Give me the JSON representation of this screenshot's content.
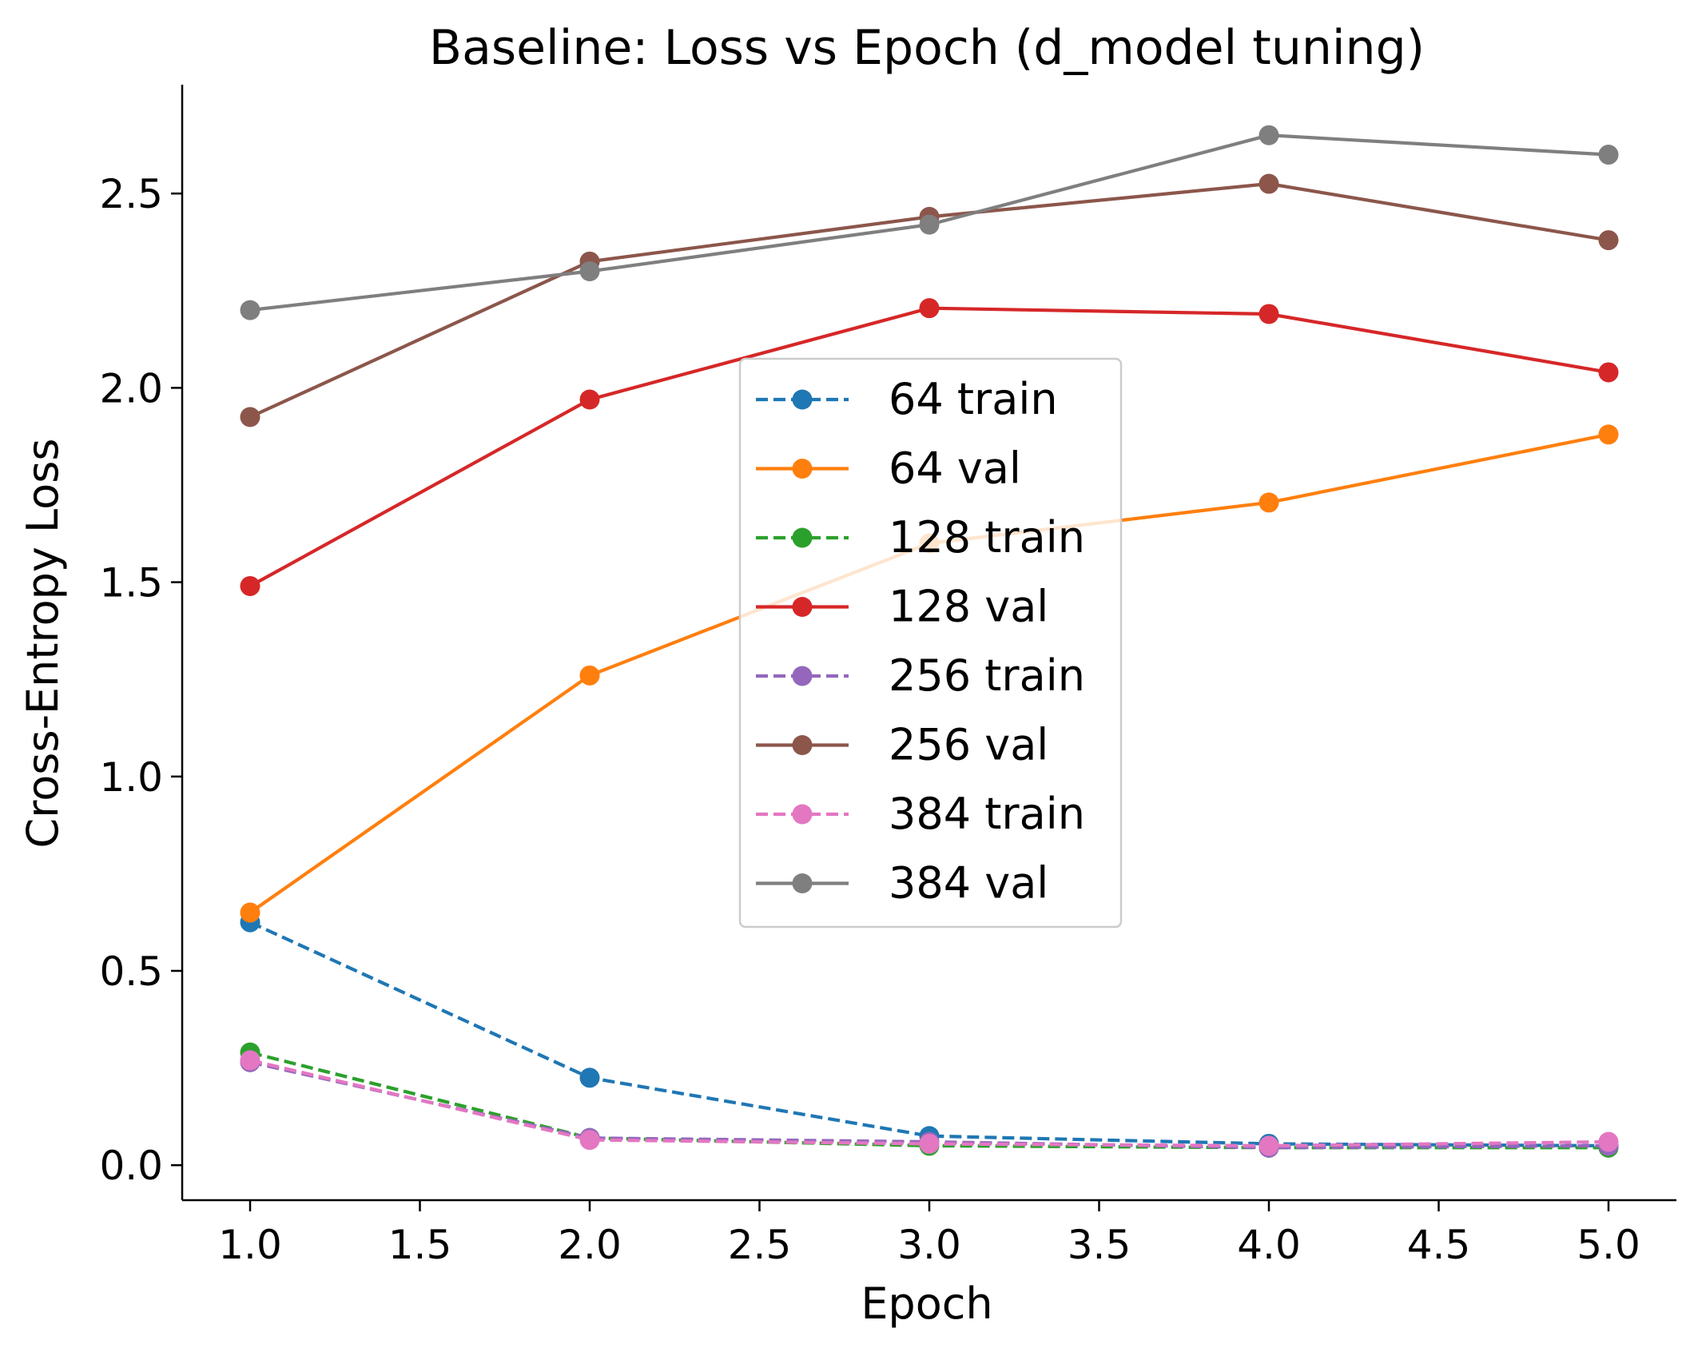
{
  "chart_data": {
    "type": "line",
    "title": "Baseline: Loss vs Epoch (d_model tuning)",
    "xlabel": "Epoch",
    "ylabel": "Cross-Entropy Loss",
    "xlim": [
      0.8,
      5.2
    ],
    "ylim": [
      -0.09,
      2.78
    ],
    "xticks": [
      1.0,
      1.5,
      2.0,
      2.5,
      3.0,
      3.5,
      4.0,
      4.5,
      5.0
    ],
    "xtick_labels": [
      "1.0",
      "1.5",
      "2.0",
      "2.5",
      "3.0",
      "3.5",
      "4.0",
      "4.5",
      "5.0"
    ],
    "yticks": [
      0.0,
      0.5,
      1.0,
      1.5,
      2.0,
      2.5
    ],
    "ytick_labels": [
      "0.0",
      "0.5",
      "1.0",
      "1.5",
      "2.0",
      "2.5"
    ],
    "grid": false,
    "legend_position": "center",
    "x": [
      1,
      2,
      3,
      4,
      5
    ],
    "series": [
      {
        "name": "64 train",
        "color": "#1f77b4",
        "style": "dashed",
        "values": [
          0.625,
          0.225,
          0.075,
          0.055,
          0.05
        ]
      },
      {
        "name": "64 val",
        "color": "#ff7f0e",
        "style": "solid",
        "values": [
          0.65,
          1.26,
          1.6,
          1.705,
          1.88
        ]
      },
      {
        "name": "128 train",
        "color": "#2ca02c",
        "style": "dashed",
        "values": [
          0.29,
          0.07,
          0.05,
          0.045,
          0.045
        ]
      },
      {
        "name": "128 val",
        "color": "#d62728",
        "style": "solid",
        "values": [
          1.49,
          1.97,
          2.205,
          2.19,
          2.04
        ]
      },
      {
        "name": "256 train",
        "color": "#9467bd",
        "style": "dashed",
        "values": [
          0.265,
          0.07,
          0.06,
          0.045,
          0.05
        ]
      },
      {
        "name": "256 val",
        "color": "#8c564b",
        "style": "solid",
        "values": [
          1.925,
          2.325,
          2.44,
          2.525,
          2.38
        ]
      },
      {
        "name": "384 train",
        "color": "#e377c2",
        "style": "dashed",
        "values": [
          0.27,
          0.065,
          0.055,
          0.05,
          0.06
        ]
      },
      {
        "name": "384 val",
        "color": "#7f7f7f",
        "style": "solid",
        "values": [
          2.2,
          2.3,
          2.42,
          2.65,
          2.6
        ]
      }
    ]
  }
}
